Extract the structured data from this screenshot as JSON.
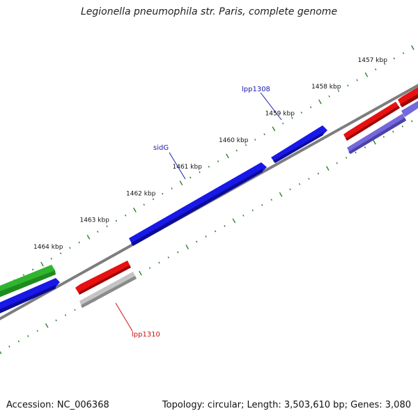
{
  "title": "Legionella pneumophila str. Paris, complete genome",
  "accession": "Accession: NC_006368",
  "summary": "Topology: circular; Length: 3,503,610 bp; Genes: 3,080",
  "tick_unit": "kbp",
  "scale_ticks": [
    {
      "kbp": 1457,
      "label": "1457 kbp"
    },
    {
      "kbp": 1458,
      "label": "1458 kbp"
    },
    {
      "kbp": 1459,
      "label": "1459 kbp"
    },
    {
      "kbp": 1460,
      "label": "1460 kbp"
    },
    {
      "kbp": 1461,
      "label": "1461 kbp"
    },
    {
      "kbp": 1462,
      "label": "1462 kbp"
    },
    {
      "kbp": 1463,
      "label": "1463 kbp"
    },
    {
      "kbp": 1464,
      "label": "1464 kbp"
    }
  ],
  "gene_labels": [
    {
      "text": "lpp1308",
      "color": "#1a1aa8"
    },
    {
      "text": "sidG",
      "color": "#1a1aa8"
    },
    {
      "text": "lpp1310",
      "color": "#cc1111"
    }
  ],
  "colors": {
    "backbone": "#808080",
    "ticks": "#2e7d2e",
    "forward_cds": "#1515e0",
    "reverse_cds": "#e01010",
    "other_cds": "#33bb33",
    "purple_feature": "#6f63d8",
    "grey_feature": "#b8b8b8"
  }
}
